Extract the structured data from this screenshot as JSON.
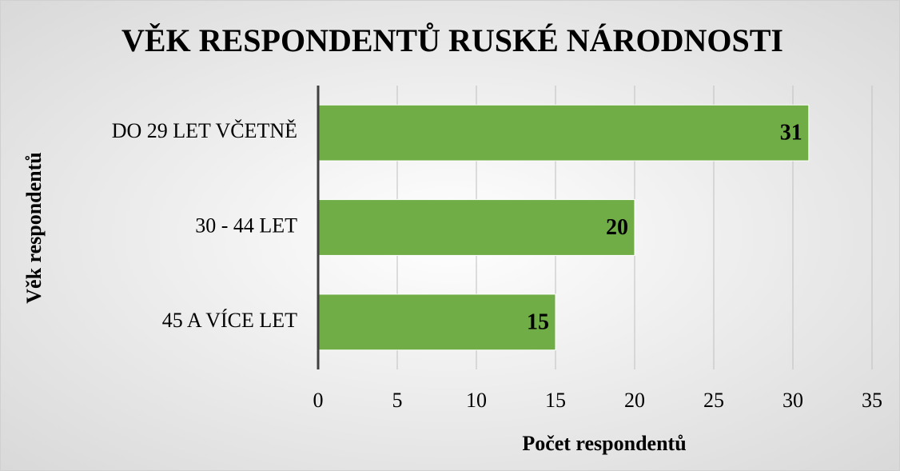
{
  "chart_data": {
    "type": "bar",
    "orientation": "horizontal",
    "title": "VĚK RESPONDENTŮ RUSKÉ NÁRODNOSTI",
    "xlabel": "Počet respondentů",
    "ylabel": "Věk respondentů",
    "categories": [
      "DO 29 LET VČETNĚ",
      "30 - 44 LET",
      "45 A VÍCE LET"
    ],
    "values": [
      31,
      20,
      15
    ],
    "color": "#70ad47",
    "xlim": [
      0,
      35
    ],
    "xticks": [
      0,
      5,
      10,
      15,
      20,
      25,
      30,
      35
    ],
    "grid": true
  }
}
